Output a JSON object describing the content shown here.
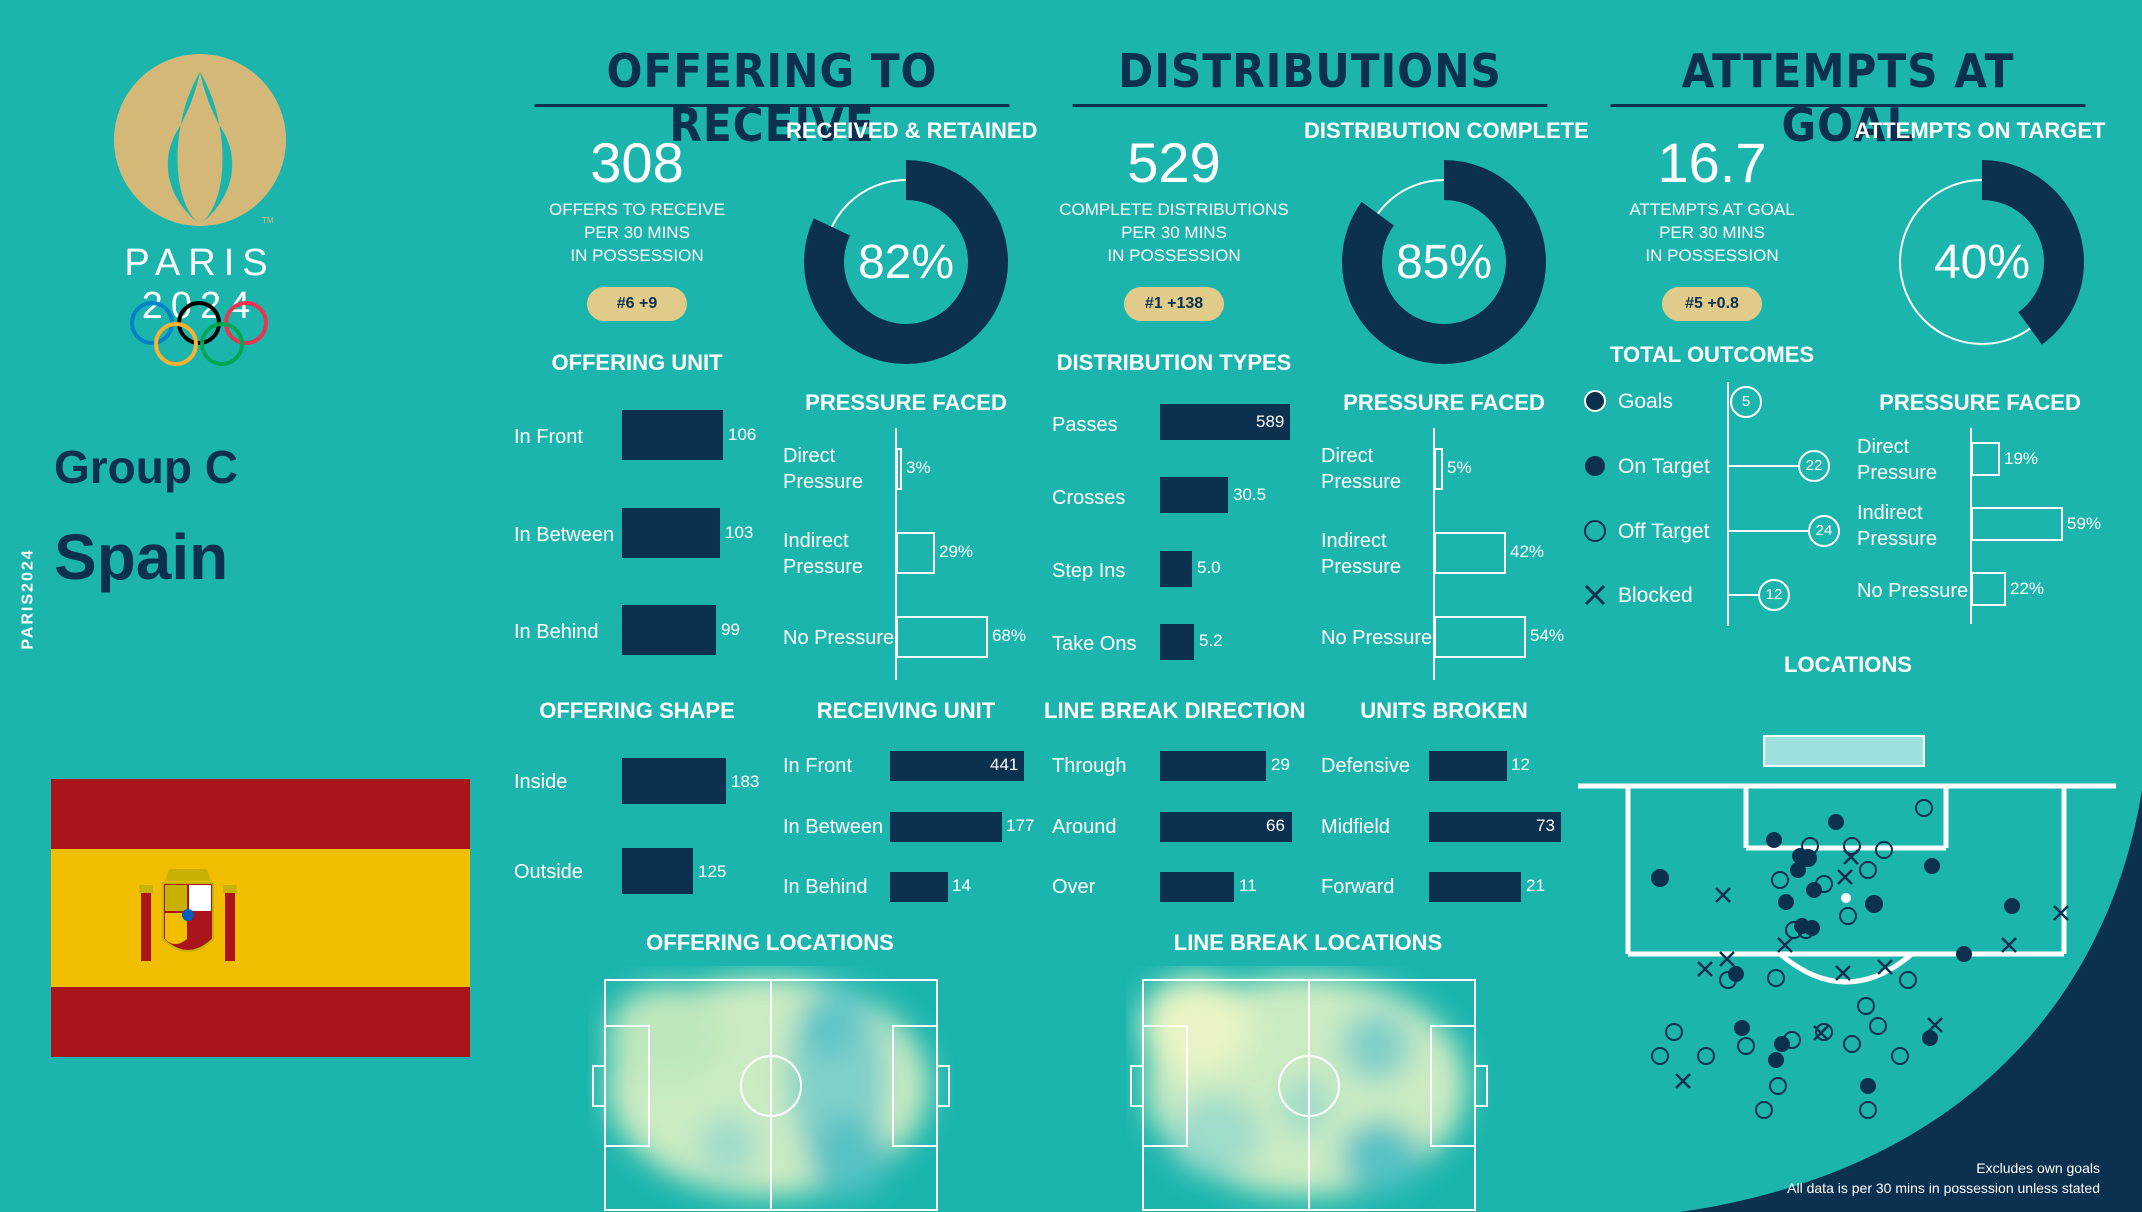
{
  "brand": {
    "wordmark": "PARIS 2024",
    "tm": "TM",
    "vertical": "PARIS2024"
  },
  "team": {
    "group": "Group C",
    "name": "Spain"
  },
  "colors": {
    "background": "#1BB5AE",
    "navy": "#0B3050",
    "gold": "#E1CB8A",
    "flag_red": "#AA151B",
    "flag_yellow": "#F1BF00"
  },
  "offering": {
    "title": "OFFERING TO RECEIVE",
    "stat_value": "308",
    "stat_caption": [
      "OFFERS TO RECEIVE",
      "PER 30 MINS",
      "IN POSSESSION"
    ],
    "rank": "#6 +9",
    "donut_title": "RECEIVED & RETAINED",
    "donut_pct": 82,
    "donut_label": "82%",
    "unit_title": "OFFERING UNIT",
    "unit": [
      {
        "label": "In Front",
        "value": "106"
      },
      {
        "label": "In Between",
        "value": "103"
      },
      {
        "label": "In Behind",
        "value": "99"
      }
    ],
    "pressure_title": "PRESSURE FACED",
    "pressure": [
      {
        "label": "Direct Pressure",
        "value": "3%"
      },
      {
        "label": "Indirect Pressure",
        "value": "29%"
      },
      {
        "label": "No Pressure",
        "value": "68%"
      }
    ],
    "shape_title": "OFFERING SHAPE",
    "shape": [
      {
        "label": "Inside",
        "value": "183"
      },
      {
        "label": "Outside",
        "value": "125"
      }
    ],
    "receiving_title": "RECEIVING UNIT",
    "receiving": [
      {
        "label": "In Front",
        "value": "441"
      },
      {
        "label": "In Between",
        "value": "177"
      },
      {
        "label": "In Behind",
        "value": "14"
      }
    ],
    "locations_title": "OFFERING LOCATIONS"
  },
  "distributions": {
    "title": "DISTRIBUTIONS",
    "stat_value": "529",
    "stat_caption": [
      "COMPLETE DISTRIBUTIONS",
      "PER 30 MINS",
      "IN POSSESSION"
    ],
    "rank": "#1 +138",
    "donut_title": "DISTRIBUTION COMPLETE",
    "donut_pct": 85,
    "donut_label": "85%",
    "types_title": "DISTRIBUTION TYPES",
    "types": [
      {
        "label": "Passes",
        "value": "589"
      },
      {
        "label": "Crosses",
        "value": "30.5"
      },
      {
        "label": "Step Ins",
        "value": "5.0"
      },
      {
        "label": "Take Ons",
        "value": "5.2"
      }
    ],
    "pressure_title": "PRESSURE FACED",
    "pressure": [
      {
        "label": "Direct Pressure",
        "value": "5%"
      },
      {
        "label": "Indirect Pressure",
        "value": "42%"
      },
      {
        "label": "No Pressure",
        "value": "54%"
      }
    ],
    "direction_title": "LINE BREAK DIRECTION",
    "direction": [
      {
        "label": "Through",
        "value": "29"
      },
      {
        "label": "Around",
        "value": "66"
      },
      {
        "label": "Over",
        "value": "11"
      }
    ],
    "units_title": "UNITS BROKEN",
    "units": [
      {
        "label": "Defensive",
        "value": "12"
      },
      {
        "label": "Midfield",
        "value": "73"
      },
      {
        "label": "Forward",
        "value": "21"
      }
    ],
    "locations_title": "LINE BREAK LOCATIONS"
  },
  "attempts": {
    "title": "ATTEMPTS AT GOAL",
    "stat_value": "16.7",
    "stat_caption": [
      "ATTEMPTS AT GOAL",
      "PER 30 MINS",
      "IN POSSESSION"
    ],
    "rank": "#5 +0.8",
    "donut_title": "ATTEMPTS ON TARGET",
    "donut_pct": 40,
    "donut_label": "40%",
    "outcomes_title": "TOTAL OUTCOMES",
    "outcomes": [
      {
        "label": "Goals",
        "value": "5"
      },
      {
        "label": "On Target",
        "value": "22"
      },
      {
        "label": "Off Target",
        "value": "24"
      },
      {
        "label": "Blocked",
        "value": "12"
      }
    ],
    "pressure_title": "PRESSURE FACED",
    "pressure": [
      {
        "label": "Direct Pressure",
        "value": "19%"
      },
      {
        "label": "Indirect Pressure",
        "value": "59%"
      },
      {
        "label": "No Pressure",
        "value": "22%"
      }
    ],
    "locations_title": "LOCATIONS"
  },
  "footnote": [
    "Excludes own goals",
    "All data is per 30 mins in possession unless stated"
  ]
}
